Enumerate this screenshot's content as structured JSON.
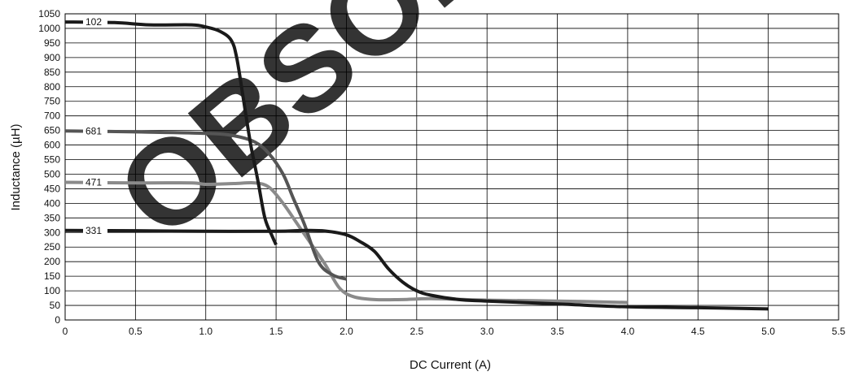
{
  "chart_data": {
    "type": "line",
    "xlabel": "DC Current (A)",
    "ylabel": "Inductance (µH)",
    "xlim": [
      0,
      5.5
    ],
    "ylim": [
      0,
      1050
    ],
    "x_ticks": [
      "0",
      "0.5",
      "1.0",
      "1.5",
      "2.0",
      "2.5",
      "3.0",
      "3.5",
      "4.0",
      "4.5",
      "5.0",
      "5.5"
    ],
    "y_ticks": [
      "0",
      "50",
      "100",
      "150",
      "200",
      "250",
      "300",
      "350",
      "400",
      "450",
      "500",
      "550",
      "600",
      "650",
      "700",
      "750",
      "800",
      "850",
      "900",
      "950",
      "1000",
      "1050"
    ],
    "grid": true,
    "watermark": "OBSOLETE",
    "series": [
      {
        "name": "102",
        "color": "#1a1a1a",
        "points": [
          [
            0,
            1022
          ],
          [
            0.35,
            1020
          ],
          [
            0.6,
            1012
          ],
          [
            0.9,
            1012
          ],
          [
            1.0,
            1005
          ],
          [
            1.1,
            990
          ],
          [
            1.18,
            960
          ],
          [
            1.22,
            900
          ],
          [
            1.27,
            750
          ],
          [
            1.32,
            600
          ],
          [
            1.37,
            480
          ],
          [
            1.42,
            350
          ],
          [
            1.47,
            290
          ],
          [
            1.5,
            258
          ]
        ]
      },
      {
        "name": "681",
        "color": "#555555",
        "points": [
          [
            0,
            648
          ],
          [
            0.5,
            645
          ],
          [
            1.0,
            640
          ],
          [
            1.2,
            632
          ],
          [
            1.35,
            610
          ],
          [
            1.45,
            570
          ],
          [
            1.55,
            500
          ],
          [
            1.62,
            420
          ],
          [
            1.7,
            330
          ],
          [
            1.8,
            200
          ],
          [
            1.9,
            155
          ],
          [
            2.0,
            140
          ]
        ]
      },
      {
        "name": "471",
        "color": "#8a8a8a",
        "points": [
          [
            0,
            472
          ],
          [
            0.5,
            470
          ],
          [
            0.9,
            470
          ],
          [
            1.0,
            465
          ],
          [
            1.2,
            468
          ],
          [
            1.35,
            470
          ],
          [
            1.45,
            455
          ],
          [
            1.55,
            400
          ],
          [
            1.65,
            330
          ],
          [
            1.75,
            260
          ],
          [
            1.85,
            190
          ],
          [
            1.95,
            110
          ],
          [
            2.05,
            80
          ],
          [
            2.2,
            70
          ],
          [
            2.4,
            70
          ],
          [
            2.6,
            73
          ],
          [
            3.0,
            68
          ],
          [
            3.5,
            65
          ],
          [
            4.0,
            60
          ]
        ]
      },
      {
        "name": "331",
        "color": "#1a1a1a",
        "points": [
          [
            0,
            307
          ],
          [
            0.5,
            306
          ],
          [
            1.0,
            304
          ],
          [
            1.5,
            304
          ],
          [
            1.7,
            307
          ],
          [
            1.85,
            305
          ],
          [
            2.0,
            292
          ],
          [
            2.1,
            268
          ],
          [
            2.2,
            235
          ],
          [
            2.3,
            175
          ],
          [
            2.4,
            130
          ],
          [
            2.5,
            100
          ],
          [
            2.6,
            85
          ],
          [
            2.8,
            70
          ],
          [
            3.0,
            65
          ],
          [
            3.5,
            55
          ],
          [
            4.0,
            45
          ],
          [
            4.5,
            42
          ],
          [
            5.0,
            38
          ]
        ]
      }
    ]
  }
}
